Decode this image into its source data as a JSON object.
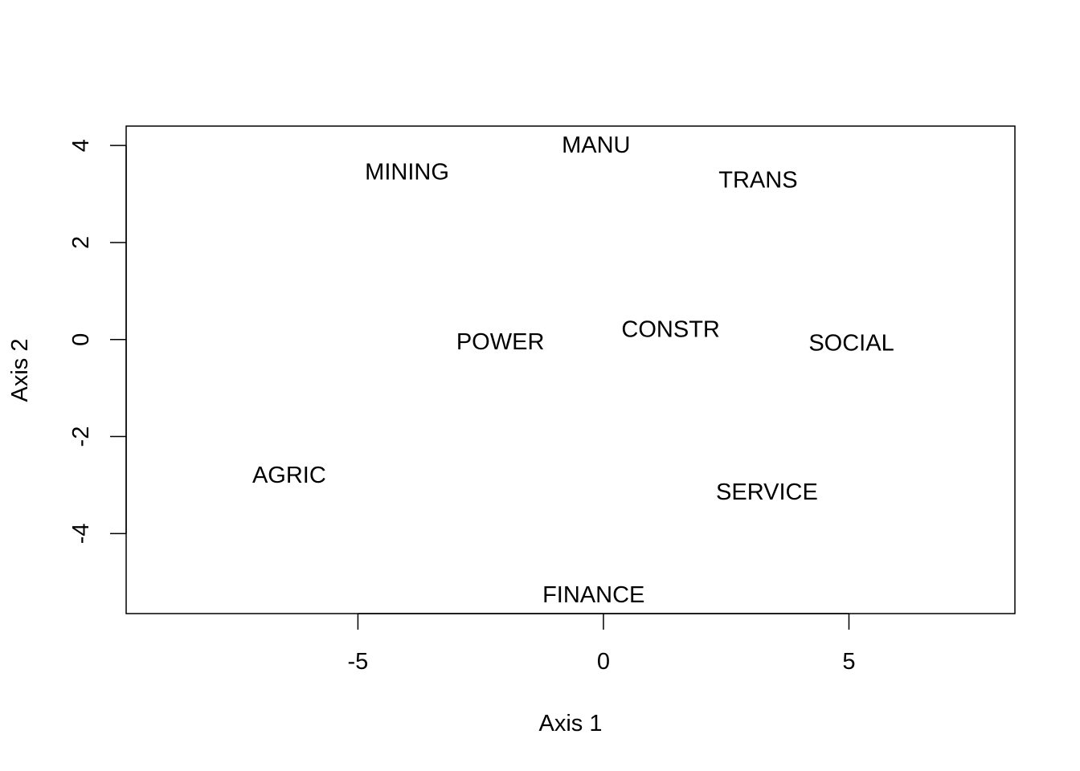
{
  "chart_data": {
    "type": "scatter",
    "title": "",
    "xlabel": "Axis 1",
    "ylabel": "Axis 2",
    "xlim": [
      -9.72,
      8.38
    ],
    "ylim": [
      -5.65,
      4.4
    ],
    "xticks": [
      -5,
      0,
      5
    ],
    "yticks": [
      -4,
      -2,
      0,
      2,
      4
    ],
    "xtick_labels": [
      "-5",
      "0",
      "5"
    ],
    "ytick_labels": [
      "-4",
      "-2",
      "0",
      "2",
      "4"
    ],
    "grid": false,
    "legend": "none",
    "points": [
      {
        "label": "MANU",
        "x": -0.15,
        "y": 4.0
      },
      {
        "label": "MINING",
        "x": -4.0,
        "y": 3.45
      },
      {
        "label": "TRANS",
        "x": 3.15,
        "y": 3.28
      },
      {
        "label": "POWER",
        "x": -2.1,
        "y": -0.05
      },
      {
        "label": "CONSTR",
        "x": 1.37,
        "y": 0.2
      },
      {
        "label": "SOCIAL",
        "x": 5.05,
        "y": -0.08
      },
      {
        "label": "AGRIC",
        "x": -6.4,
        "y": -2.8
      },
      {
        "label": "SERVICE",
        "x": 3.33,
        "y": -3.15
      },
      {
        "label": "FINANCE",
        "x": -0.2,
        "y": -5.27
      }
    ]
  }
}
